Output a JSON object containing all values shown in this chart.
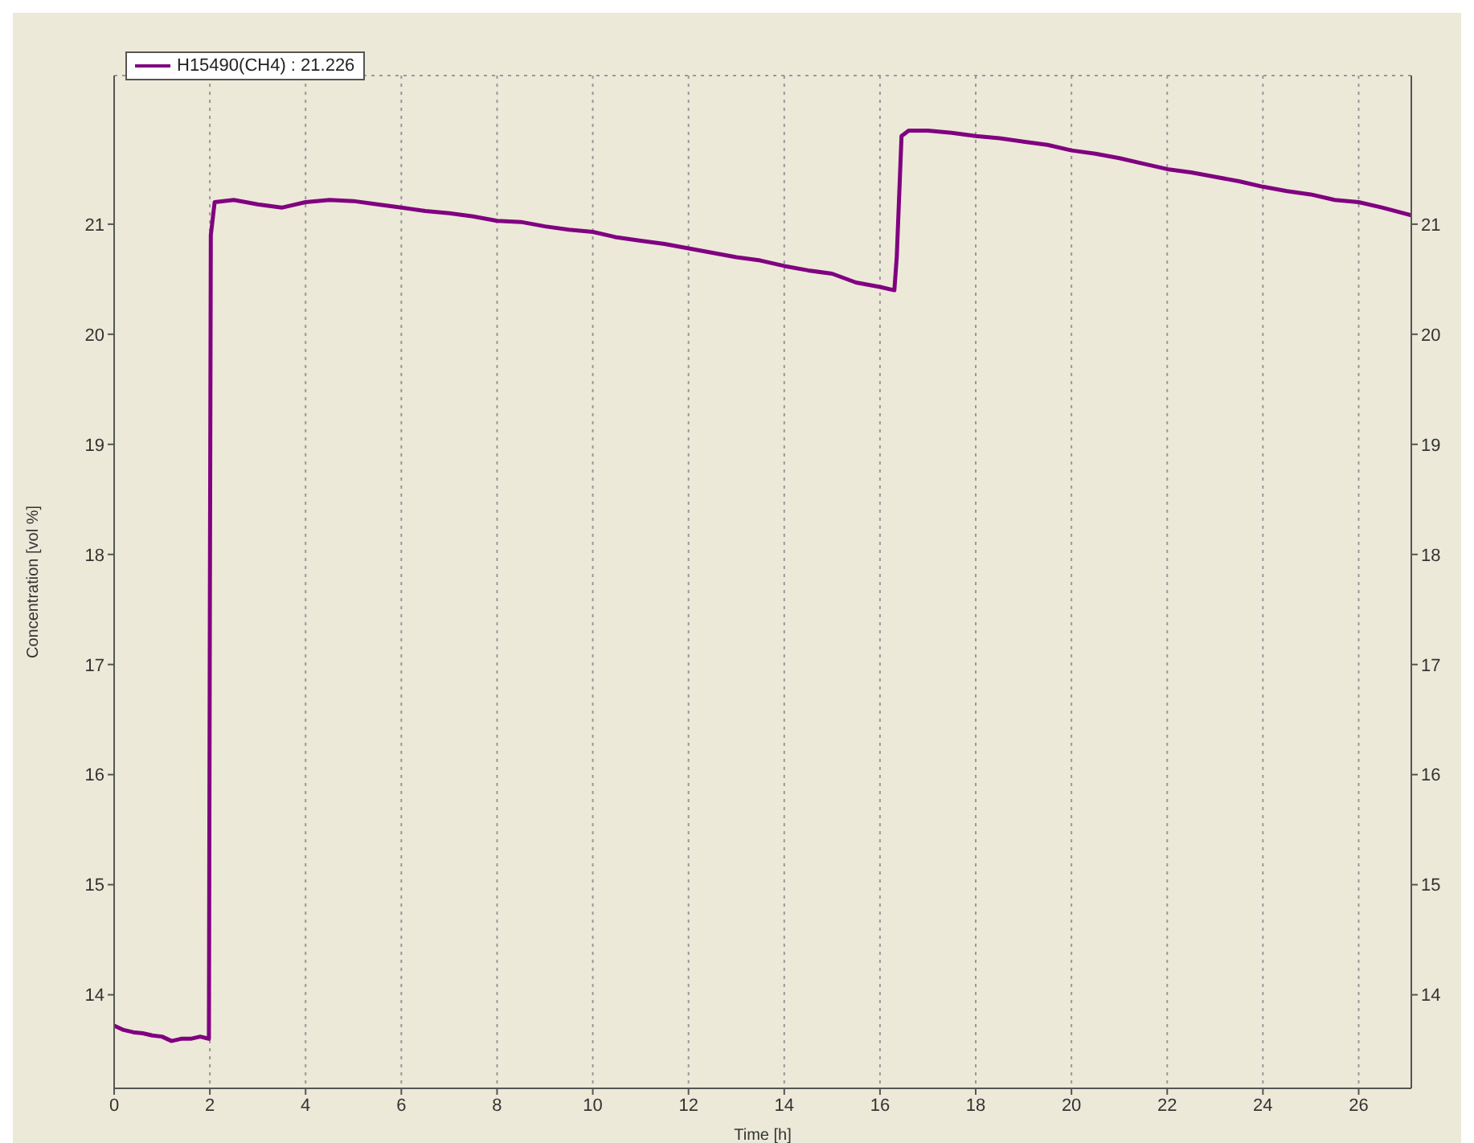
{
  "chart_data": {
    "type": "line",
    "xlabel": "Time [h]",
    "ylabel": "Concentration [vol %]",
    "x": [
      0,
      0.2,
      0.4,
      0.6,
      0.8,
      1,
      1.2,
      1.4,
      1.6,
      1.8,
      1.98,
      2.0,
      2.02,
      2.1,
      2.5,
      3,
      3.5,
      4,
      4.5,
      5,
      5.5,
      6,
      6.5,
      7,
      7.5,
      8,
      8.5,
      9,
      9.5,
      10,
      10.5,
      11,
      11.5,
      12,
      12.5,
      13,
      13.5,
      14,
      14.5,
      15,
      15.5,
      16,
      16.3,
      16.35,
      16.45,
      16.6,
      17,
      17.5,
      18,
      18.5,
      19,
      19.5,
      20,
      20.5,
      21,
      21.5,
      22,
      22.5,
      23,
      23.5,
      24,
      24.5,
      25,
      25.5,
      26,
      26.5,
      27.1
    ],
    "series": [
      {
        "name": "H15490(CH4) : 21.226",
        "color": "#800080",
        "values": [
          13.72,
          13.68,
          13.66,
          13.65,
          13.63,
          13.62,
          13.58,
          13.6,
          13.6,
          13.62,
          13.6,
          17.5,
          20.9,
          21.2,
          21.22,
          21.18,
          21.15,
          21.2,
          21.22,
          21.21,
          21.18,
          21.15,
          21.12,
          21.1,
          21.07,
          21.03,
          21.02,
          20.98,
          20.95,
          20.93,
          20.88,
          20.85,
          20.82,
          20.78,
          20.74,
          20.7,
          20.67,
          20.62,
          20.58,
          20.55,
          20.47,
          20.43,
          20.4,
          20.7,
          21.8,
          21.85,
          21.85,
          21.83,
          21.8,
          21.78,
          21.75,
          21.72,
          21.67,
          21.64,
          21.6,
          21.55,
          21.5,
          21.47,
          21.43,
          21.39,
          21.34,
          21.3,
          21.27,
          21.22,
          21.2,
          21.15,
          21.08
        ]
      }
    ],
    "xlim": [
      0,
      27.1
    ],
    "xticks": [
      0,
      2,
      4,
      6,
      8,
      10,
      12,
      14,
      16,
      18,
      20,
      22,
      24,
      26
    ],
    "ylim": [
      13.15,
      22.35
    ],
    "yticks": [
      14,
      15,
      16,
      17,
      18,
      19,
      20,
      21
    ],
    "y2lim": [
      13.15,
      22.35
    ],
    "y2ticks": [
      14,
      15,
      16,
      17,
      18,
      19,
      20,
      21
    ],
    "grid": true,
    "legend": "top left",
    "marker": "none",
    "line_style": "solid"
  }
}
